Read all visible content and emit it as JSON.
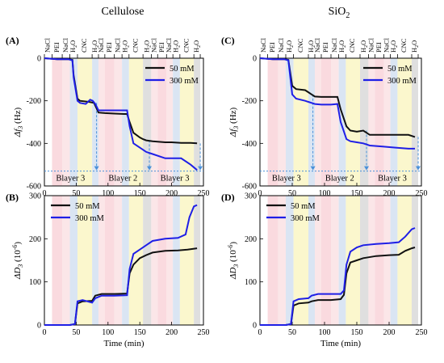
{
  "figure": {
    "titles": [
      "Cellulose",
      "SiO",
      "2"
    ],
    "panel_labels": [
      "(A)",
      "(B)",
      "(C)",
      "(D)"
    ],
    "xlabel": "Time (min)",
    "ylabel_f": {
      "pre": "Δf",
      "sub": "3",
      "post": " (Hz)"
    },
    "ylabel_d": {
      "pre": "ΔD",
      "sub": "3",
      "post": " (10",
      "sup": "-6",
      "end": ")"
    },
    "bilayer_labels": [
      "Blayer 3",
      "Blayer 2",
      "Blayer 3"
    ],
    "band_colors": {
      "NaCl": "#f9d6dc",
      "PEI": "#f9d6dc",
      "H2O": "#d6e2f2",
      "CNC": "#fbf6c8",
      "H2O_late": "#dcdcdc"
    },
    "series_colors": {
      "50mM": "#111111",
      "300mM": "#1f1fe6",
      "arrow": "#4a90d9"
    }
  },
  "solutions": [
    {
      "label": "NaCl",
      "from": 0,
      "to": 12,
      "color": "#ffffff"
    },
    {
      "label": "PEI",
      "from": 12,
      "to": 28,
      "color": "#f9d6dc"
    },
    {
      "label": "NaCl",
      "from": 28,
      "to": 40,
      "color": "#fbe3e6"
    },
    {
      "label": "H2O",
      "from": 40,
      "to": 52,
      "color": "#d6e2f2"
    },
    {
      "label": "CNC",
      "from": 52,
      "to": 75,
      "color": "#fbf6c8"
    },
    {
      "label": "H2O",
      "from": 75,
      "to": 85,
      "color": "#d6e2f2"
    },
    {
      "label": "NaCl",
      "from": 85,
      "to": 95,
      "color": "#fbe3e6"
    },
    {
      "label": "PEI",
      "from": 95,
      "to": 110,
      "color": "#f9d6dc"
    },
    {
      "label": "NaCl",
      "from": 110,
      "to": 122,
      "color": "#fbe3e6"
    },
    {
      "label": "H2O",
      "from": 122,
      "to": 133,
      "color": "#d6e2f2"
    },
    {
      "label": "CNC",
      "from": 133,
      "to": 155,
      "color": "#fbf6c8"
    },
    {
      "label": "H2O",
      "from": 155,
      "to": 168,
      "color": "#dcdcdc"
    },
    {
      "label": "NaCl",
      "from": 168,
      "to": 178,
      "color": "#fbe3e6"
    },
    {
      "label": "PEI",
      "from": 178,
      "to": 192,
      "color": "#f9d6dc"
    },
    {
      "label": "NaCl",
      "from": 192,
      "to": 202,
      "color": "#fbe3e6"
    },
    {
      "label": "H2O",
      "from": 202,
      "to": 213,
      "color": "#d6e2f2"
    },
    {
      "label": "CNC",
      "from": 213,
      "to": 235,
      "color": "#fbf6c8"
    },
    {
      "label": "H2O",
      "from": 235,
      "to": 245,
      "color": "#dcdcdc"
    }
  ],
  "chart_data": [
    {
      "panel": "(A)",
      "type": "line",
      "title": "Cellulose",
      "xlabel": "",
      "ylabel": "Δf3 (Hz)",
      "xlim": [
        0,
        250
      ],
      "ylim": [
        -600,
        0
      ],
      "xticks": [
        0,
        50,
        100,
        150,
        200,
        250
      ],
      "yticks": [
        0,
        -200,
        -400,
        -600
      ],
      "legend": "top-right",
      "series": [
        {
          "name": "50 mM",
          "x": [
            0,
            20,
            38,
            44,
            46,
            52,
            56,
            70,
            75,
            78,
            85,
            95,
            110,
            125,
            130,
            134,
            140,
            150,
            155,
            160,
            170,
            190,
            200,
            215,
            230,
            240
          ],
          "y": [
            0,
            -5,
            -5,
            -8,
            -80,
            -190,
            -200,
            -205,
            -208,
            -210,
            -255,
            -258,
            -260,
            -262,
            -262,
            -300,
            -350,
            -372,
            -380,
            -386,
            -390,
            -395,
            -395,
            -398,
            -398,
            -400
          ]
        },
        {
          "name": "300 mM",
          "x": [
            0,
            20,
            38,
            44,
            46,
            52,
            56,
            65,
            72,
            76,
            80,
            85,
            95,
            110,
            125,
            130,
            134,
            140,
            150,
            155,
            160,
            170,
            190,
            200,
            215,
            230,
            240
          ],
          "y": [
            0,
            -5,
            -5,
            -10,
            -90,
            -200,
            -210,
            -215,
            -195,
            -200,
            -215,
            -245,
            -245,
            -245,
            -245,
            -245,
            -320,
            -400,
            -420,
            -430,
            -440,
            -450,
            -470,
            -470,
            -470,
            -500,
            -525
          ]
        }
      ],
      "annotations": [
        "Blayer 3",
        "Blayer 2",
        "Blayer 3"
      ]
    },
    {
      "panel": "(B)",
      "type": "line",
      "xlabel": "Time (min)",
      "ylabel": "ΔD3 (10^-6)",
      "xlim": [
        0,
        250
      ],
      "ylim": [
        0,
        300
      ],
      "xticks": [
        0,
        50,
        100,
        150,
        200,
        250
      ],
      "yticks": [
        0,
        100,
        200,
        300
      ],
      "legend": "top-left",
      "series": [
        {
          "name": "50 mM",
          "x": [
            0,
            40,
            48,
            52,
            60,
            75,
            80,
            90,
            110,
            130,
            134,
            140,
            150,
            160,
            170,
            190,
            210,
            225,
            240
          ],
          "y": [
            0,
            0,
            2,
            50,
            55,
            56,
            68,
            72,
            72,
            73,
            120,
            140,
            155,
            162,
            168,
            172,
            173,
            175,
            178
          ]
        },
        {
          "name": "300 mM",
          "x": [
            0,
            40,
            48,
            52,
            60,
            75,
            80,
            90,
            110,
            130,
            134,
            140,
            150,
            160,
            170,
            190,
            210,
            222,
            228,
            235,
            240
          ],
          "y": [
            0,
            0,
            2,
            55,
            58,
            52,
            62,
            68,
            68,
            69,
            130,
            165,
            175,
            185,
            195,
            200,
            202,
            210,
            250,
            275,
            278
          ]
        }
      ]
    },
    {
      "panel": "(C)",
      "type": "line",
      "title": "SiO2",
      "xlabel": "",
      "ylabel": "Δf3 (Hz)",
      "xlim": [
        0,
        250
      ],
      "ylim": [
        -600,
        0
      ],
      "xticks": [
        0,
        50,
        100,
        150,
        200,
        250
      ],
      "yticks": [
        0,
        -200,
        -400,
        -600
      ],
      "legend": "top-right",
      "series": [
        {
          "name": "50 mM",
          "x": [
            0,
            20,
            38,
            44,
            50,
            56,
            70,
            75,
            80,
            85,
            95,
            110,
            120,
            125,
            134,
            140,
            150,
            160,
            170,
            190,
            210,
            230,
            240
          ],
          "y": [
            0,
            -5,
            -5,
            -8,
            -130,
            -145,
            -150,
            -160,
            -170,
            -180,
            -182,
            -182,
            -182,
            -240,
            -320,
            -340,
            -345,
            -340,
            -360,
            -360,
            -360,
            -360,
            -370
          ]
        },
        {
          "name": "300 mM",
          "x": [
            0,
            20,
            38,
            44,
            50,
            56,
            70,
            75,
            80,
            85,
            95,
            110,
            120,
            125,
            134,
            140,
            150,
            160,
            170,
            190,
            210,
            230,
            240
          ],
          "y": [
            0,
            -5,
            -5,
            -10,
            -170,
            -190,
            -200,
            -205,
            -210,
            -215,
            -218,
            -218,
            -215,
            -300,
            -380,
            -390,
            -395,
            -400,
            -410,
            -415,
            -420,
            -425,
            -425
          ]
        }
      ],
      "annotations": [
        "Blayer 3",
        "Blayer 2",
        "Blayer 3"
      ]
    },
    {
      "panel": "(D)",
      "type": "line",
      "xlabel": "Time (min)",
      "ylabel": "ΔD3 (10^-6)",
      "xlim": [
        0,
        250
      ],
      "ylim": [
        0,
        300
      ],
      "xticks": [
        0,
        50,
        100,
        150,
        200,
        250
      ],
      "yticks": [
        0,
        100,
        200,
        300
      ],
      "legend": "top-left",
      "series": [
        {
          "name": "50 mM",
          "x": [
            0,
            40,
            48,
            52,
            60,
            75,
            80,
            90,
            110,
            125,
            130,
            134,
            140,
            150,
            160,
            180,
            200,
            215,
            225,
            235,
            240
          ],
          "y": [
            0,
            0,
            2,
            45,
            50,
            52,
            55,
            58,
            58,
            60,
            70,
            120,
            145,
            150,
            155,
            160,
            162,
            163,
            172,
            178,
            180
          ]
        },
        {
          "name": "300 mM",
          "x": [
            0,
            40,
            48,
            52,
            60,
            75,
            80,
            90,
            110,
            125,
            130,
            134,
            140,
            150,
            160,
            180,
            200,
            215,
            225,
            235,
            240
          ],
          "y": [
            0,
            0,
            2,
            55,
            60,
            62,
            68,
            72,
            72,
            72,
            80,
            140,
            170,
            180,
            185,
            188,
            190,
            192,
            205,
            222,
            225
          ]
        }
      ]
    }
  ]
}
